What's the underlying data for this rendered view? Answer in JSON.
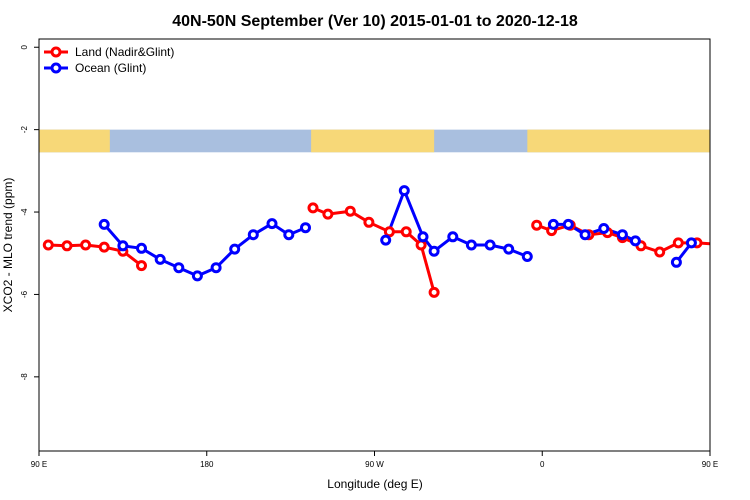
{
  "chart_data": {
    "type": "line",
    "title": "40N-50N September (Ver 10)   2015-01-01 to 2020-12-18",
    "xlabel": "Longitude (deg E)",
    "ylabel": "XCO2 - MLO trend (ppm)",
    "xlim": [
      90,
      450
    ],
    "ylim": [
      -9.8,
      0.2
    ],
    "x_ticks": [
      {
        "value": 90,
        "label": "90 E"
      },
      {
        "value": 180,
        "label": "180"
      },
      {
        "value": 270,
        "label": "90 W"
      },
      {
        "value": 360,
        "label": "0"
      },
      {
        "value": 450,
        "label": "90 E"
      },
      {
        "value": 540,
        "label": "180"
      }
    ],
    "y_ticks": [
      {
        "value": 0,
        "label": "0"
      },
      {
        "value": -2,
        "label": "-2"
      },
      {
        "value": -4,
        "label": "-4"
      },
      {
        "value": -6,
        "label": "-6"
      },
      {
        "value": -8,
        "label": "-8"
      }
    ],
    "legend_position": "top-left",
    "map_strip_y_range": [
      -2.0,
      -2.55
    ],
    "colors": {
      "land": "#ff0000",
      "ocean": "#0000ff",
      "map_land": "#f7d878",
      "map_ocean": "#a9bfdf"
    },
    "series": [
      {
        "name": "Land (Nadir&Glint)",
        "color": "#ff0000",
        "segments": [
          {
            "x": [
              95,
              105,
              115,
              125,
              135,
              145
            ],
            "y": [
              -4.8,
              -4.82,
              -4.8,
              -4.85,
              -4.95,
              -5.3
            ]
          },
          {
            "x": [
              237,
              245,
              257,
              267,
              278,
              287,
              295,
              302
            ],
            "y": [
              -3.9,
              -4.05,
              -3.98,
              -4.25,
              -4.48,
              -4.48,
              -4.8,
              -5.95
            ]
          },
          {
            "x": [
              357,
              365,
              375,
              385,
              395,
              403,
              413,
              423,
              433,
              443,
              453,
              463,
              473,
              483,
              493,
              500,
              509
            ],
            "y": [
              -4.32,
              -4.45,
              -4.32,
              -4.55,
              -4.5,
              -4.62,
              -4.82,
              -4.97,
              -4.75,
              -4.75,
              -4.78,
              -4.8,
              -4.78,
              -4.82,
              -4.95,
              -5.3,
              -5.3
            ]
          }
        ]
      },
      {
        "name": "Ocean (Glint)",
        "color": "#0000ff",
        "segments": [
          {
            "x": [
              125,
              135,
              145,
              155,
              165,
              175,
              185,
              195,
              205,
              215,
              224,
              233
            ],
            "y": [
              -4.3,
              -4.82,
              -4.88,
              -5.15,
              -5.35,
              -5.55,
              -5.35,
              -4.9,
              -4.55,
              -4.28,
              -4.55,
              -4.38
            ]
          },
          {
            "x": [
              276,
              286,
              296,
              302,
              312,
              322,
              332,
              342,
              352
            ],
            "y": [
              -4.68,
              -3.48,
              -4.6,
              -4.95,
              -4.6,
              -4.8,
              -4.8,
              -4.9,
              -5.08
            ]
          },
          {
            "x": [
              366,
              374,
              383,
              393,
              403,
              410
            ],
            "y": [
              -4.3,
              -4.3,
              -4.55,
              -4.4,
              -4.55,
              -4.7
            ]
          },
          {
            "x": [
              432,
              440
            ],
            "y": [
              -5.22,
              -4.75
            ]
          },
          {
            "x": [
              482,
              492,
              502,
              512,
              522,
              532
            ],
            "y": [
              -4.28,
              -4.85,
              -4.85,
              -5.15,
              -5.35,
              -5.55
            ]
          }
        ]
      }
    ]
  }
}
